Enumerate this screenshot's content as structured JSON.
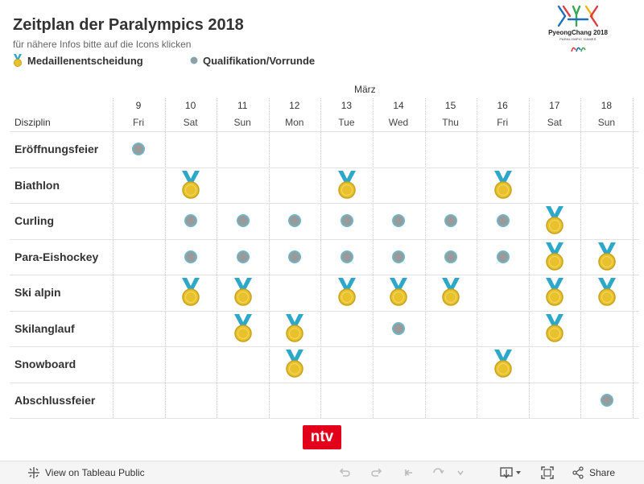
{
  "header": {
    "title": "Zeitplan der Paralympics 2018",
    "subtitle": "für nähere Infos bitte auf die Icons klicken",
    "legend": [
      {
        "icon": "medal-icon",
        "label": "Medaillenentscheidung"
      },
      {
        "icon": "dot-icon",
        "label": "Qualifikation/Vorrunde"
      }
    ]
  },
  "logo": {
    "brand": "PyeongChang 2018",
    "sub": "PARALYMPIC GAMES"
  },
  "schedule": {
    "month": "März",
    "discipline_header": "Disziplin",
    "days": [
      {
        "num": "9",
        "wd": "Fri"
      },
      {
        "num": "10",
        "wd": "Sat"
      },
      {
        "num": "11",
        "wd": "Sun"
      },
      {
        "num": "12",
        "wd": "Mon"
      },
      {
        "num": "13",
        "wd": "Tue"
      },
      {
        "num": "14",
        "wd": "Wed"
      },
      {
        "num": "15",
        "wd": "Thu"
      },
      {
        "num": "16",
        "wd": "Fri"
      },
      {
        "num": "17",
        "wd": "Sat"
      },
      {
        "num": "18",
        "wd": "Sun"
      }
    ],
    "rows": [
      {
        "label": "Eröffnungsfeier",
        "cells": [
          "Q",
          "",
          "",
          "",
          "",
          "",
          "",
          "",
          "",
          ""
        ]
      },
      {
        "label": "Biathlon",
        "cells": [
          "",
          "M",
          "",
          "",
          "M",
          "",
          "",
          "M",
          "",
          ""
        ]
      },
      {
        "label": "Curling",
        "cells": [
          "",
          "Q",
          "Q",
          "Q",
          "Q",
          "Q",
          "Q",
          "Q",
          "M",
          ""
        ]
      },
      {
        "label": "Para-Eishockey",
        "cells": [
          "",
          "Q",
          "Q",
          "Q",
          "Q",
          "Q",
          "Q",
          "Q",
          "M",
          "M"
        ]
      },
      {
        "label": "Ski alpin",
        "cells": [
          "",
          "M",
          "M",
          "",
          "M",
          "M",
          "M",
          "",
          "M",
          "M"
        ]
      },
      {
        "label": "Skilanglauf",
        "cells": [
          "",
          "",
          "M",
          "M",
          "",
          "Q",
          "",
          "",
          "M",
          ""
        ]
      },
      {
        "label": "Snowboard",
        "cells": [
          "",
          "",
          "",
          "M",
          "",
          "",
          "",
          "M",
          "",
          ""
        ]
      },
      {
        "label": "Abschlussfeier",
        "cells": [
          "",
          "",
          "",
          "",
          "",
          "",
          "",
          "",
          "",
          "Q"
        ]
      }
    ]
  },
  "branding": {
    "ntv": "ntv"
  },
  "footer": {
    "view_link": "View on Tableau Public",
    "share": "Share"
  },
  "colors": {
    "medal_gold": "#e8c12d",
    "ribbon": "#2ea8c8",
    "dot_fill": "#9a9a9a",
    "dot_ring": "#6fb5c8",
    "ntv_red": "#e3001b"
  }
}
